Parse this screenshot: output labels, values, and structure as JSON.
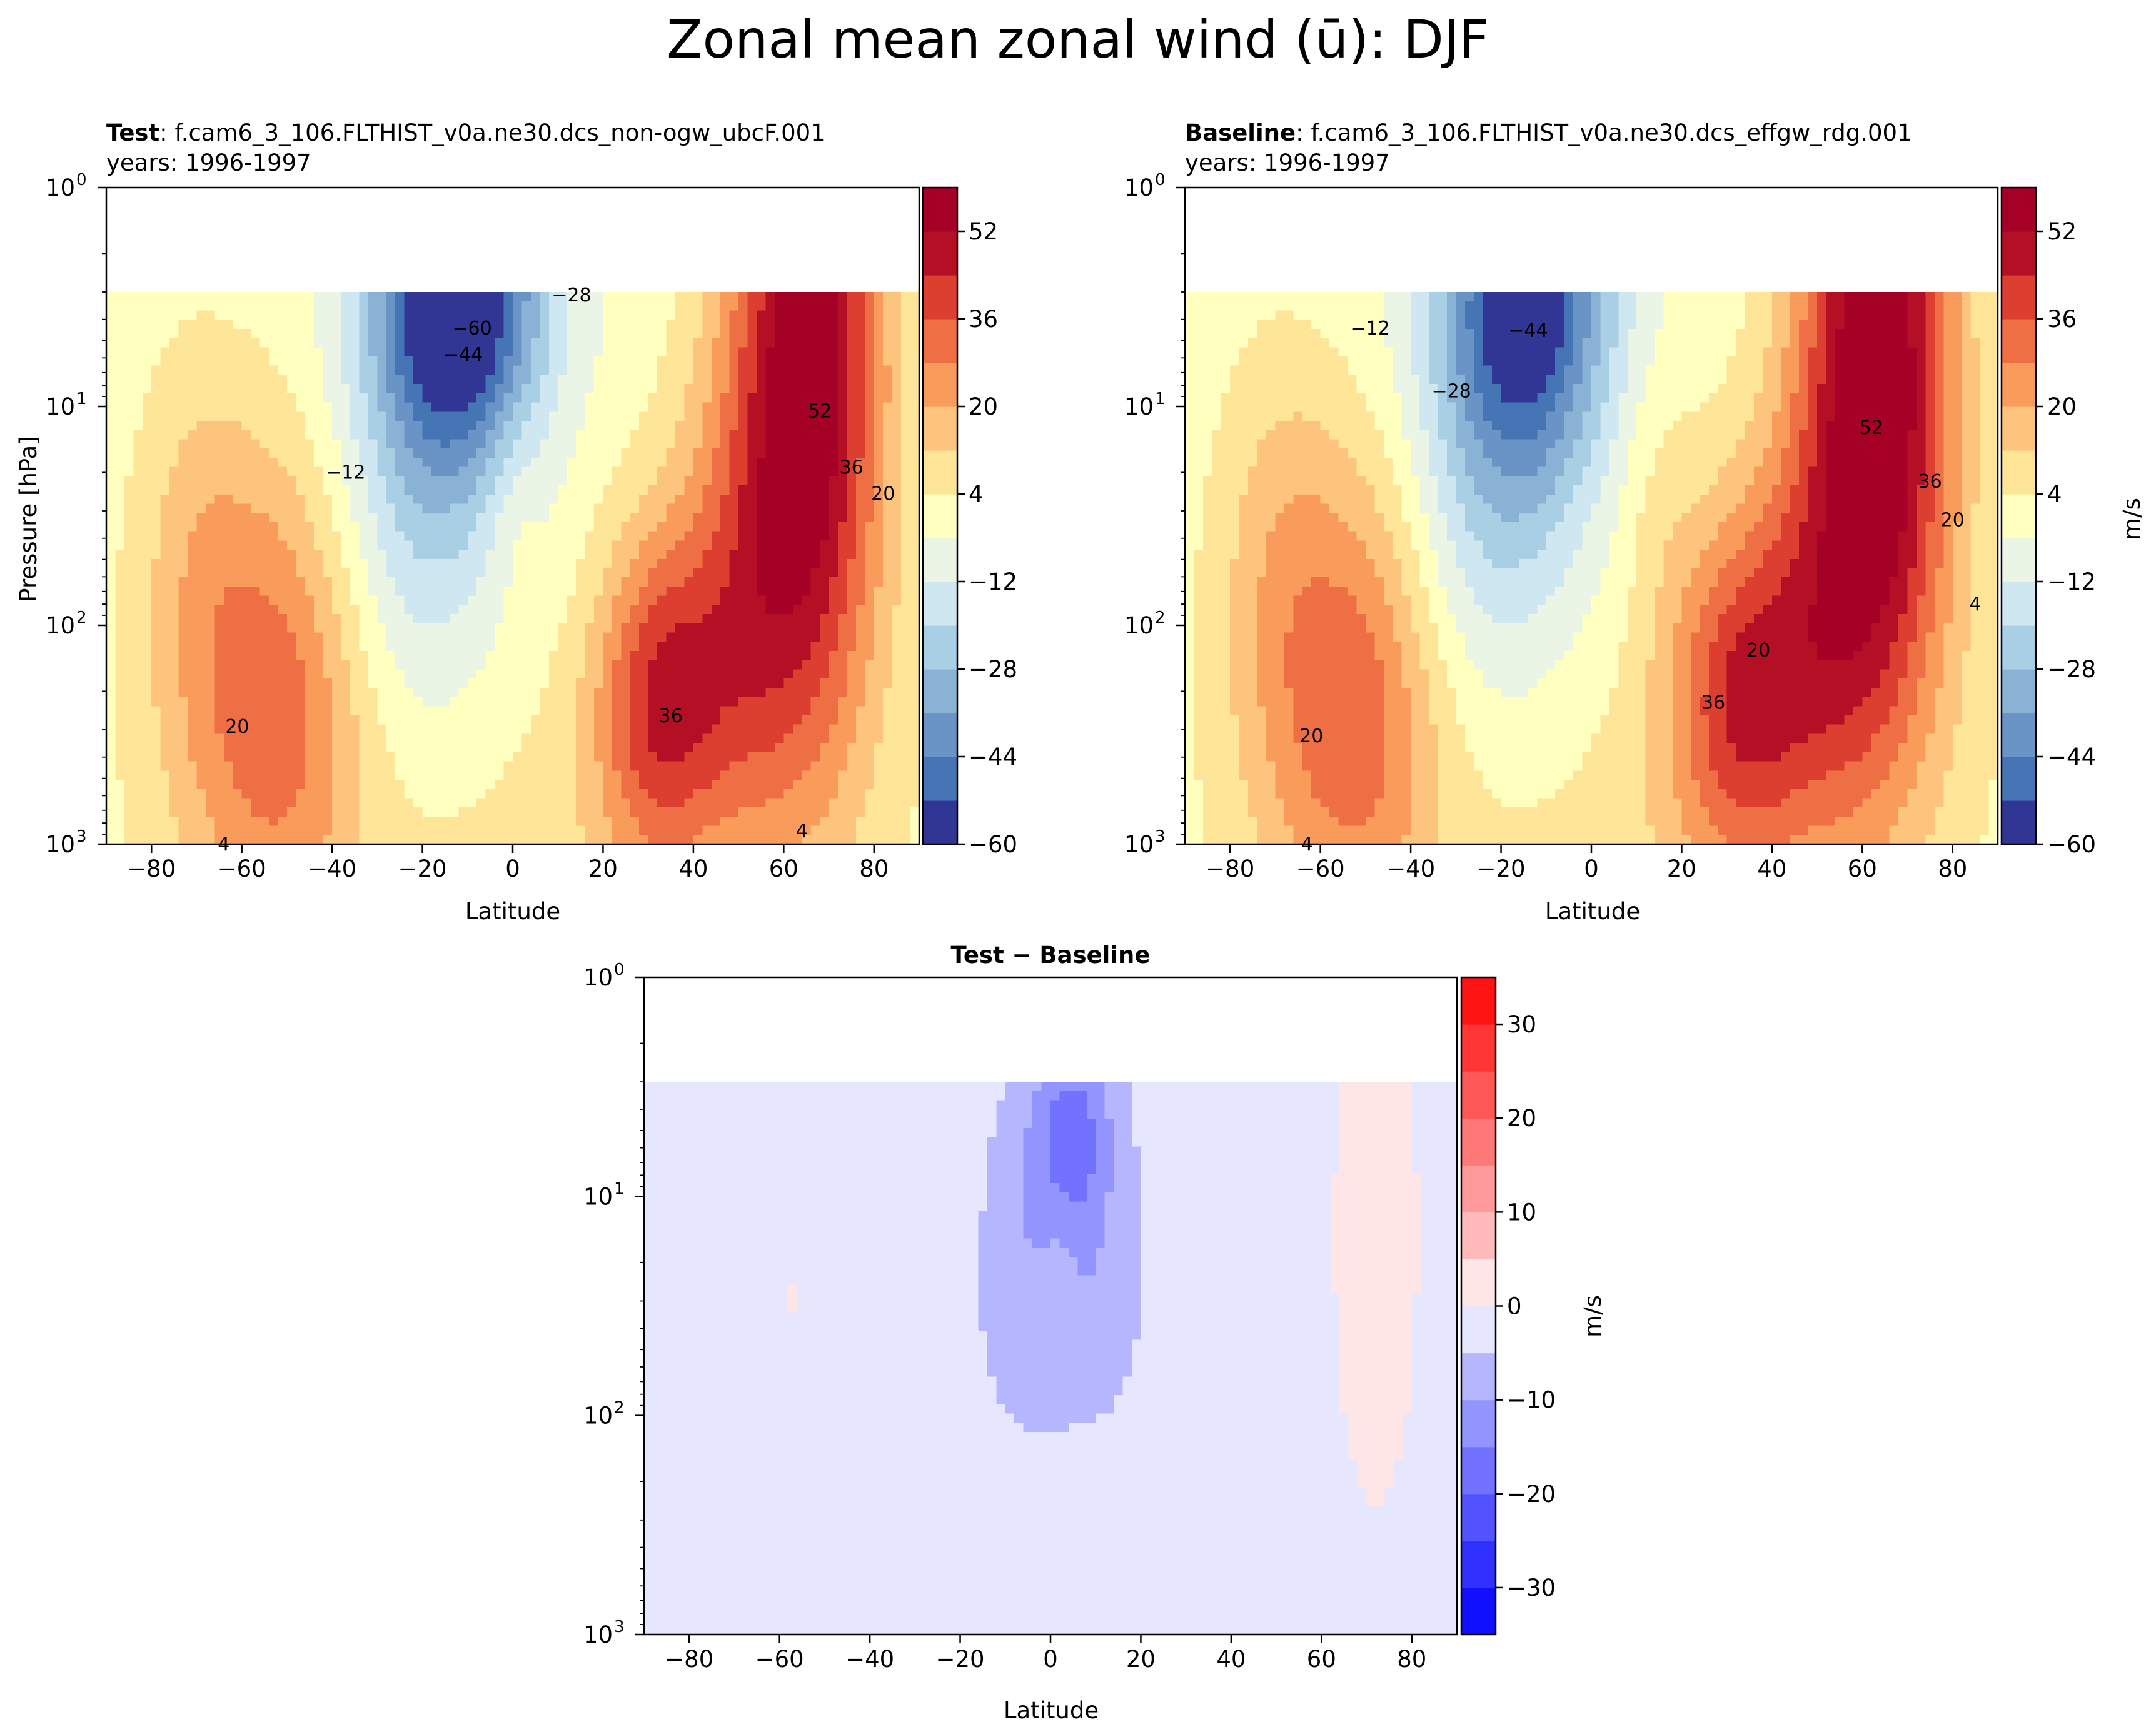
{
  "figure": {
    "title": "Zonal mean zonal wind (ū): DJF"
  },
  "chart_data": [
    {
      "type": "heatmap",
      "id": "test",
      "title_bold": "Test",
      "title_rest": ": f.cam6_3_106.FLTHIST_v0a.ne30.dcs_non-ogw_ubcF.001",
      "subtitle": "years: 1996-1997",
      "xlabel": "Latitude",
      "ylabel": "Pressure [hPa]",
      "xlim": [
        -90,
        90
      ],
      "ylim": [
        1000,
        1
      ],
      "yscale": "log",
      "data_top_hPa": 3,
      "xticks": [
        -80,
        -60,
        -40,
        -20,
        0,
        20,
        40,
        60,
        80
      ],
      "xtick_labels": [
        "−80",
        "−60",
        "−40",
        "−20",
        "0",
        "20",
        "40",
        "60",
        "80"
      ],
      "yticks": [
        1,
        10,
        100,
        1000
      ],
      "ytick_labels": [
        "10",
        "10",
        "10",
        "10"
      ],
      "ytick_exps": [
        "0",
        "1",
        "2",
        "3"
      ],
      "colorbar": {
        "levels": [
          -60,
          -52,
          -44,
          -36,
          -28,
          -20,
          -12,
          -4,
          4,
          12,
          20,
          28,
          36,
          44,
          52,
          60
        ],
        "colors": [
          "#313695",
          "#4575b4",
          "#6a93c6",
          "#8ab2d4",
          "#a9cfe5",
          "#cfe7f0",
          "#eaf5e6",
          "#ffffbf",
          "#fee597",
          "#fdc47d",
          "#f99b5a",
          "#ef6f45",
          "#dc3f2f",
          "#b50f26",
          "#a50026"
        ],
        "ticks": [
          -60,
          -44,
          -28,
          -12,
          4,
          20,
          36,
          52
        ],
        "tick_labels": [
          "−60",
          "−44",
          "−28",
          "−12",
          "4",
          "20",
          "36",
          "52"
        ],
        "label": ""
      },
      "contour_labels": [
        {
          "text": "−60",
          "lat": -9,
          "p": 4.4
        },
        {
          "text": "−44",
          "lat": -11,
          "p": 5.8
        },
        {
          "text": "−28",
          "lat": 13,
          "p": 3.1
        },
        {
          "text": "−12",
          "lat": -37,
          "p": 20
        },
        {
          "text": "52",
          "lat": 68,
          "p": 10.5
        },
        {
          "text": "36",
          "lat": 75,
          "p": 19
        },
        {
          "text": "20",
          "lat": 82,
          "p": 25
        },
        {
          "text": "36",
          "lat": 35,
          "p": 260
        },
        {
          "text": "20",
          "lat": -61,
          "p": 290
        },
        {
          "text": "4",
          "lat": -64,
          "p": 1000
        },
        {
          "text": "4",
          "lat": 64,
          "p": 870
        }
      ],
      "fields": {
        "mode": "absolute",
        "features": [
          {
            "lat": -12,
            "p": 3,
            "amp": -63,
            "sx": 13,
            "sy": 0.55
          },
          {
            "lat": -20,
            "p": 25,
            "amp": -18,
            "sx": 13,
            "sy": 0.8
          },
          {
            "lat": 66,
            "p": 3,
            "amp": 50,
            "sx": 12,
            "sy": 1.3
          },
          {
            "lat": 58,
            "p": 40,
            "amp": 24,
            "sx": 14,
            "sy": 0.95
          },
          {
            "lat": 32,
            "p": 220,
            "amp": 38,
            "sx": 10,
            "sy": 0.55
          },
          {
            "lat": 48,
            "p": 150,
            "amp": 12,
            "sx": 10,
            "sy": 0.6
          },
          {
            "lat": -52,
            "p": 220,
            "amp": 29,
            "sx": 13,
            "sy": 0.8
          },
          {
            "lat": -70,
            "p": 60,
            "amp": 14,
            "sx": 10,
            "sy": 0.8
          },
          {
            "lat": 0,
            "p": 30,
            "amp": 6,
            "sx": 4,
            "sy": 0.3
          }
        ]
      }
    },
    {
      "type": "heatmap",
      "id": "baseline",
      "title_bold": "Baseline",
      "title_rest": ": f.cam6_3_106.FLTHIST_v0a.ne30.dcs_effgw_rdg.001",
      "subtitle": "years: 1996-1997",
      "xlabel": "Latitude",
      "ylabel": "",
      "xlim": [
        -90,
        90
      ],
      "ylim": [
        1000,
        1
      ],
      "yscale": "log",
      "data_top_hPa": 3,
      "xticks": [
        -80,
        -60,
        -40,
        -20,
        0,
        20,
        40,
        60,
        80
      ],
      "xtick_labels": [
        "−80",
        "−60",
        "−40",
        "−20",
        "0",
        "20",
        "40",
        "60",
        "80"
      ],
      "yticks": [
        1,
        10,
        100,
        1000
      ],
      "ytick_labels": [
        "10",
        "10",
        "10",
        "10"
      ],
      "ytick_exps": [
        "0",
        "1",
        "2",
        "3"
      ],
      "colorbar": {
        "levels": [
          -60,
          -52,
          -44,
          -36,
          -28,
          -20,
          -12,
          -4,
          4,
          12,
          20,
          28,
          36,
          44,
          52,
          60
        ],
        "colors": [
          "#313695",
          "#4575b4",
          "#6a93c6",
          "#8ab2d4",
          "#a9cfe5",
          "#cfe7f0",
          "#eaf5e6",
          "#ffffbf",
          "#fee597",
          "#fdc47d",
          "#f99b5a",
          "#ef6f45",
          "#dc3f2f",
          "#b50f26",
          "#a50026"
        ],
        "ticks": [
          -60,
          -44,
          -28,
          -12,
          4,
          20,
          36,
          52
        ],
        "tick_labels": [
          "−60",
          "−44",
          "−28",
          "−12",
          "4",
          "20",
          "36",
          "52"
        ],
        "label": "m/s"
      },
      "contour_labels": [
        {
          "text": "−12",
          "lat": -49,
          "p": 4.4
        },
        {
          "text": "−44",
          "lat": -14,
          "p": 4.5
        },
        {
          "text": "−28",
          "lat": -31,
          "p": 8.5
        },
        {
          "text": "52",
          "lat": 62,
          "p": 12.5
        },
        {
          "text": "36",
          "lat": 75,
          "p": 22
        },
        {
          "text": "20",
          "lat": 80,
          "p": 33
        },
        {
          "text": "4",
          "lat": 85,
          "p": 80
        },
        {
          "text": "20",
          "lat": 37,
          "p": 130
        },
        {
          "text": "36",
          "lat": 27,
          "p": 225
        },
        {
          "text": "20",
          "lat": -62,
          "p": 320
        },
        {
          "text": "4",
          "lat": -63,
          "p": 1000
        }
      ],
      "fields": {
        "mode": "absolute",
        "features": [
          {
            "lat": -14,
            "p": 3,
            "amp": -54,
            "sx": 13,
            "sy": 0.6
          },
          {
            "lat": -22,
            "p": 22,
            "amp": -18,
            "sx": 14,
            "sy": 0.8
          },
          {
            "lat": 64,
            "p": 3,
            "amp": 52,
            "sx": 12,
            "sy": 1.3
          },
          {
            "lat": 58,
            "p": 40,
            "amp": 24,
            "sx": 14,
            "sy": 0.95
          },
          {
            "lat": 32,
            "p": 210,
            "amp": 37,
            "sx": 11,
            "sy": 0.6
          },
          {
            "lat": 48,
            "p": 150,
            "amp": 12,
            "sx": 10,
            "sy": 0.6
          },
          {
            "lat": -52,
            "p": 220,
            "amp": 30,
            "sx": 13,
            "sy": 0.8
          },
          {
            "lat": -70,
            "p": 60,
            "amp": 14,
            "sx": 10,
            "sy": 0.8
          },
          {
            "lat": 15,
            "p": 25,
            "amp": 6,
            "sx": 6,
            "sy": 0.5
          }
        ]
      }
    },
    {
      "type": "heatmap",
      "id": "diff",
      "title_bold": "Test − Baseline",
      "title_rest": "",
      "subtitle": "",
      "xlabel": "Latitude",
      "ylabel": "",
      "xlim": [
        -90,
        90
      ],
      "ylim": [
        1000,
        1
      ],
      "yscale": "log",
      "data_top_hPa": 3,
      "xticks": [
        -80,
        -60,
        -40,
        -20,
        0,
        20,
        40,
        60,
        80
      ],
      "xtick_labels": [
        "−80",
        "−60",
        "−40",
        "−20",
        "0",
        "20",
        "40",
        "60",
        "80"
      ],
      "yticks": [
        1,
        10,
        100,
        1000
      ],
      "ytick_labels": [
        "10",
        "10",
        "10",
        "10"
      ],
      "ytick_exps": [
        "0",
        "1",
        "2",
        "3"
      ],
      "colorbar": {
        "levels": [
          -35,
          -30,
          -25,
          -20,
          -15,
          -10,
          -5,
          0,
          5,
          10,
          15,
          20,
          25,
          30,
          35
        ],
        "colors": [
          "#1010ff",
          "#3030ff",
          "#5252ff",
          "#7272ff",
          "#9494ff",
          "#b6b6ff",
          "#e6e6ff",
          "#ffe6e6",
          "#ffbbbb",
          "#ff9a9a",
          "#ff7878",
          "#ff5656",
          "#ff3636",
          "#ff1414"
        ],
        "ticks": [
          -30,
          -20,
          -10,
          0,
          10,
          20,
          30
        ],
        "tick_labels": [
          "−30",
          "−20",
          "−10",
          "0",
          "10",
          "20",
          "30"
        ],
        "label": "m/s"
      },
      "contour_labels": [],
      "fields": {
        "mode": "diff",
        "features": [
          {
            "lat": 5,
            "p": 5,
            "amp": -10,
            "sx": 6,
            "sy": 0.3
          },
          {
            "lat": 2,
            "p": 12,
            "amp": -8,
            "sx": 11,
            "sy": 0.6
          },
          {
            "lat": 3,
            "p": 60,
            "amp": -3,
            "sx": 15,
            "sy": 0.5
          },
          {
            "lat": 2,
            "p": 25,
            "amp": 4,
            "sx": 3.5,
            "sy": 0.3
          },
          {
            "lat": 72,
            "p": 15,
            "amp": 6.5,
            "sx": 6,
            "sy": 0.8
          },
          {
            "lat": -57,
            "p": 30,
            "amp": 2,
            "sx": 8,
            "sy": 0.8
          },
          {
            "lat": 5,
            "p": 250,
            "amp": 2,
            "sx": 10,
            "sy": 0.4
          },
          {
            "lat": -75,
            "p": 450,
            "amp": 1.5,
            "sx": 6,
            "sy": 0.9
          }
        ]
      }
    }
  ]
}
